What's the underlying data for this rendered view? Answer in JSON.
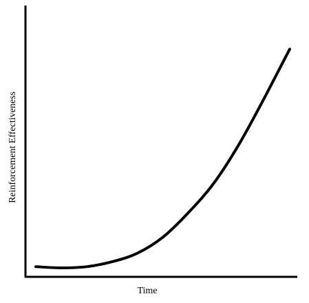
{
  "chart_data": {
    "type": "line",
    "title": "",
    "xlabel": "Time",
    "ylabel": "Reinforcement Effectiveness",
    "xticks": false,
    "yticks": false,
    "grid": false,
    "legend": "none",
    "xlim": [
      0,
      1
    ],
    "ylim": [
      0,
      1
    ],
    "series": [
      {
        "x": [
          0.0,
          0.1,
          0.2,
          0.3,
          0.4,
          0.5,
          0.6,
          0.7,
          0.8,
          0.9,
          0.95,
          1.0
        ],
        "y": [
          0.05,
          0.045,
          0.05,
          0.07,
          0.105,
          0.17,
          0.27,
          0.39,
          0.55,
          0.74,
          0.84,
          0.94
        ]
      }
    ]
  },
  "colors": {
    "axis": "#000000",
    "curve": "#000000",
    "background": "#ffffff"
  }
}
